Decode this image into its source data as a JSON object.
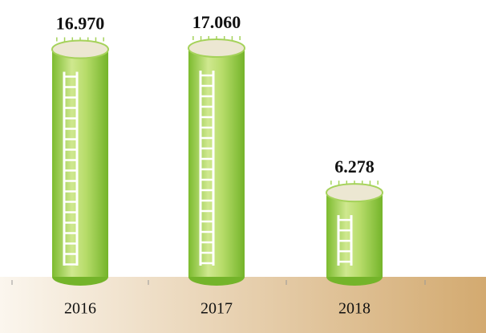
{
  "chart_data": {
    "type": "bar",
    "categories": [
      "2016",
      "2017",
      "2018"
    ],
    "values": [
      16970,
      17060,
      6278
    ],
    "value_labels": [
      "16.970",
      "17.060",
      "6.278"
    ],
    "color": "#8cc63f"
  }
}
